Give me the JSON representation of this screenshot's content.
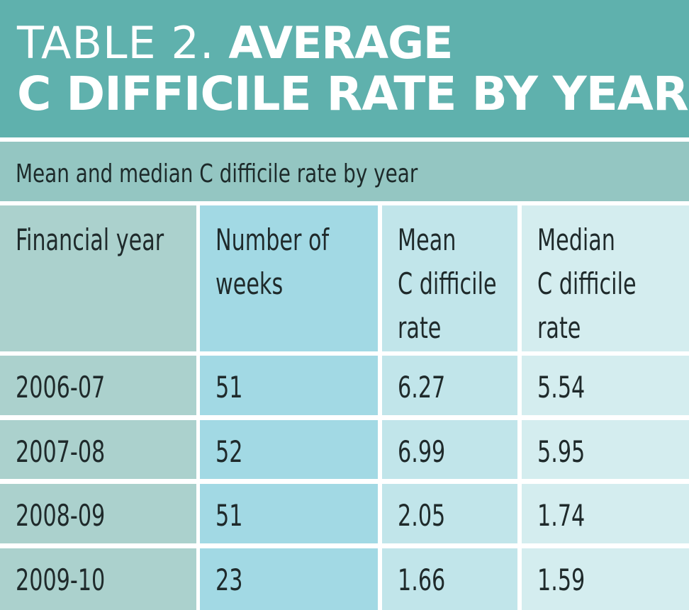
{
  "title": {
    "light": "TABLE 2.",
    "bold_line1": "AVERAGE",
    "bold_line2": "C DIFFICILE RATE BY YEAR"
  },
  "subtitle": "Mean and median C difficile rate by year",
  "table": {
    "headers": [
      "Financial year",
      "Number of\nweeks",
      "Mean\nC difficile\nrate",
      "Median\nC difficile\nrate"
    ],
    "rows": [
      [
        "2006-07",
        "51",
        "6.27",
        "5.54"
      ],
      [
        "2007-08",
        "52",
        "6.99",
        "5.95"
      ],
      [
        "2008-09",
        "51",
        "2.05",
        "1.74"
      ],
      [
        "2009-10",
        "23",
        "1.66",
        "1.59"
      ]
    ]
  },
  "colors": {
    "title_band": "#5fb1ad",
    "subtitle_band": "#94c6c2",
    "col1": "#abd1cd",
    "col2": "#a2d9e4",
    "col3": "#c1e5ea",
    "col4": "#d4edef"
  }
}
